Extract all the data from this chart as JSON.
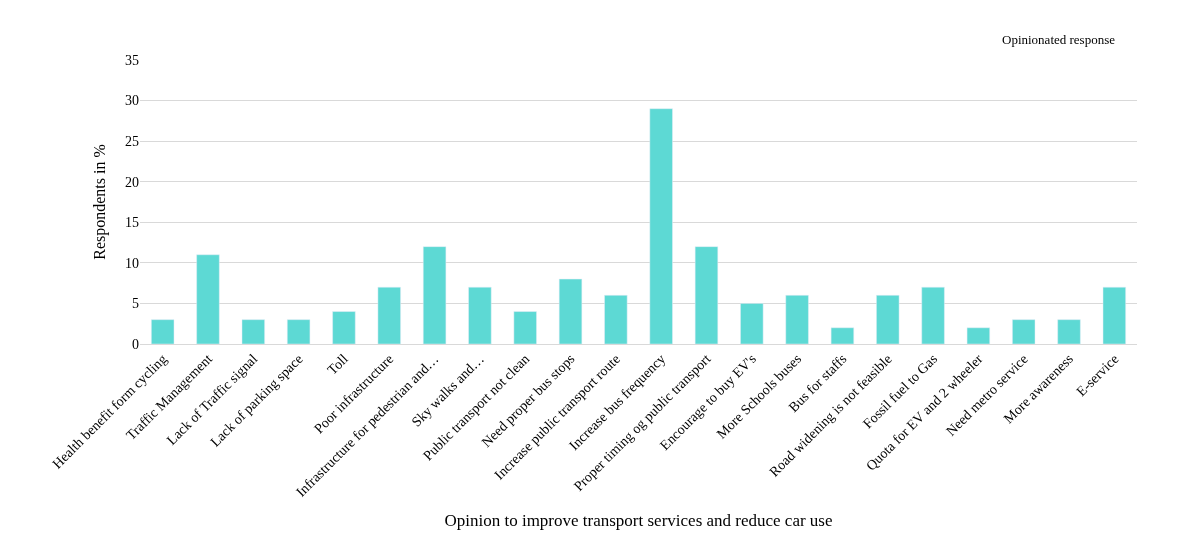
{
  "chart_data": {
    "type": "bar",
    "xlabel": "Opinion to improve transport services and reduce car use",
    "ylabel": "Respondents in %",
    "categories": [
      "Health benefit form cycling",
      "Traffic Management",
      "Lack of Traffic signal",
      "Lack of parking space",
      "Toll",
      "Poor infrastructure",
      "Infrastructure for pedestrian and…",
      "Sky walks and…",
      "Public transport not clean",
      "Need proper bus stops",
      "Increase public transport route",
      "Increase bus frequency",
      "Proper timing og public transport",
      "Encourage to buy EV's",
      "More Schools buses",
      "Bus for staffs",
      "Road widening is not feasible",
      "Fossil fuel to Gas",
      "Quota for EV and 2 wheeler",
      "Need metro service",
      "More awareness",
      "E-service"
    ],
    "values": [
      3,
      11,
      3,
      3,
      4,
      7,
      12,
      7,
      4,
      8,
      6,
      29,
      12,
      5,
      6,
      2,
      6,
      7,
      2,
      3,
      3,
      7
    ],
    "color": "#5dd9d4",
    "ylim": [
      0,
      35
    ],
    "yticks": [
      0,
      5,
      10,
      15,
      20,
      25,
      30,
      35
    ],
    "grid": "y",
    "annotations": [
      "Opinionated response"
    ]
  }
}
